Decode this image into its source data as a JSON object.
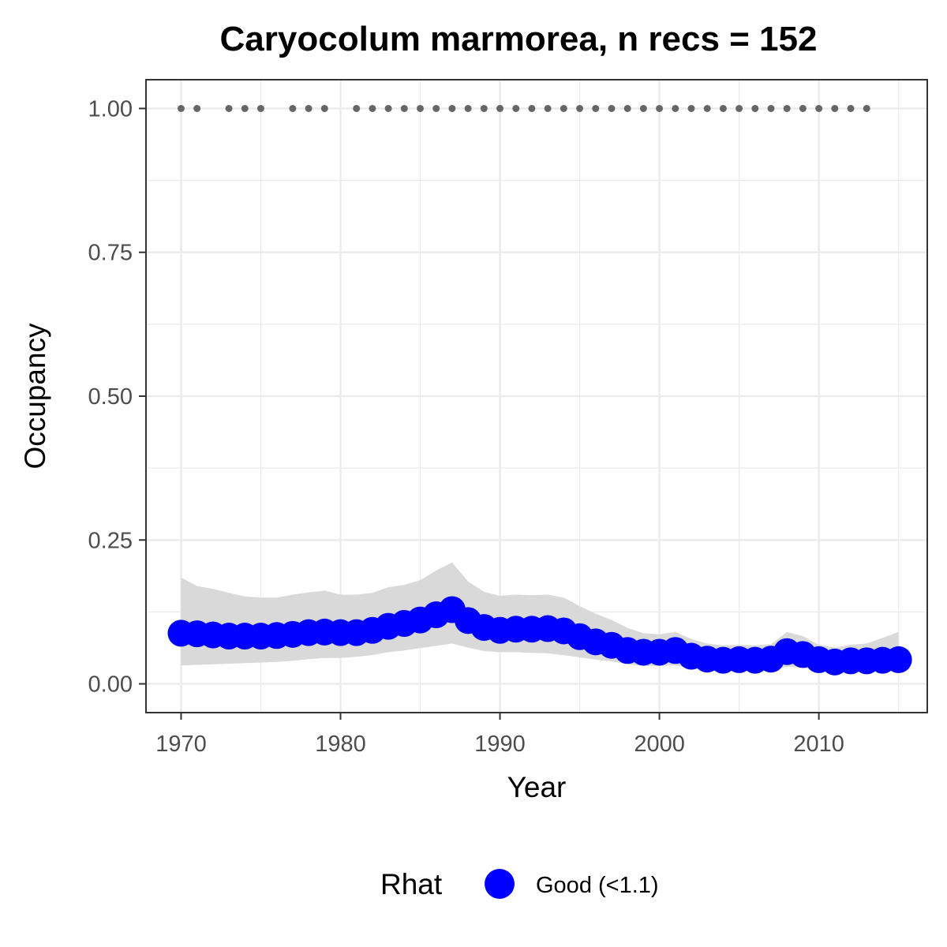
{
  "chart_data": {
    "type": "line",
    "title": "Caryocolum marmorea, n recs = 152",
    "xlabel": "Year",
    "ylabel": "Occupancy",
    "xlim": [
      1967.8,
      2016.8
    ],
    "ylim": [
      -0.05,
      1.05
    ],
    "x_ticks": [
      1970,
      1980,
      1990,
      2000,
      2010
    ],
    "x_tick_labels": [
      "1970",
      "1980",
      "1990",
      "2000",
      "2010"
    ],
    "y_ticks": [
      0,
      0.25,
      0.5,
      0.75,
      1
    ],
    "y_tick_labels": [
      "0.00",
      "0.25",
      "0.50",
      "0.75",
      "1.00"
    ],
    "grid": true,
    "legend": {
      "title": "Rhat",
      "position": "bottom",
      "entries": [
        {
          "label": "Good (<1.1)",
          "color": "#0000ff"
        }
      ]
    },
    "series": [
      {
        "name": "Occupancy",
        "color": "#0000ff",
        "x": [
          1970,
          1971,
          1972,
          1973,
          1974,
          1975,
          1976,
          1977,
          1978,
          1979,
          1980,
          1981,
          1982,
          1983,
          1984,
          1985,
          1986,
          1987,
          1988,
          1989,
          1990,
          1991,
          1992,
          1993,
          1994,
          1995,
          1996,
          1997,
          1998,
          1999,
          2000,
          2001,
          2002,
          2003,
          2004,
          2005,
          2006,
          2007,
          2008,
          2009,
          2010,
          2011,
          2012,
          2013,
          2014,
          2015
        ],
        "y": [
          0.088,
          0.087,
          0.085,
          0.083,
          0.083,
          0.083,
          0.084,
          0.086,
          0.089,
          0.09,
          0.089,
          0.089,
          0.093,
          0.1,
          0.105,
          0.111,
          0.12,
          0.129,
          0.11,
          0.098,
          0.093,
          0.095,
          0.095,
          0.096,
          0.092,
          0.082,
          0.073,
          0.067,
          0.058,
          0.055,
          0.055,
          0.058,
          0.048,
          0.043,
          0.041,
          0.042,
          0.041,
          0.043,
          0.056,
          0.051,
          0.042,
          0.038,
          0.04,
          0.04,
          0.041,
          0.042
        ],
        "lower": [
          0.032,
          0.033,
          0.034,
          0.035,
          0.036,
          0.037,
          0.038,
          0.04,
          0.043,
          0.045,
          0.045,
          0.047,
          0.05,
          0.055,
          0.058,
          0.062,
          0.066,
          0.07,
          0.063,
          0.057,
          0.055,
          0.055,
          0.054,
          0.053,
          0.05,
          0.046,
          0.042,
          0.039,
          0.034,
          0.031,
          0.031,
          0.032,
          0.027,
          0.024,
          0.023,
          0.023,
          0.023,
          0.024,
          0.03,
          0.028,
          0.023,
          0.021,
          0.022,
          0.022,
          0.023,
          0.023
        ],
        "upper": [
          0.185,
          0.17,
          0.165,
          0.158,
          0.152,
          0.15,
          0.15,
          0.155,
          0.159,
          0.162,
          0.155,
          0.155,
          0.158,
          0.168,
          0.172,
          0.18,
          0.197,
          0.211,
          0.178,
          0.16,
          0.153,
          0.155,
          0.154,
          0.155,
          0.15,
          0.135,
          0.122,
          0.111,
          0.097,
          0.088,
          0.086,
          0.09,
          0.078,
          0.07,
          0.067,
          0.068,
          0.067,
          0.069,
          0.09,
          0.083,
          0.068,
          0.063,
          0.068,
          0.07,
          0.08,
          0.09
        ]
      }
    ],
    "record_years": {
      "y": 1,
      "color": "#666666",
      "x": [
        1970,
        1971,
        1973,
        1974,
        1975,
        1977,
        1978,
        1979,
        1981,
        1982,
        1983,
        1984,
        1985,
        1986,
        1987,
        1988,
        1989,
        1990,
        1991,
        1992,
        1993,
        1994,
        1995,
        1996,
        1997,
        1998,
        1999,
        2000,
        2001,
        2002,
        2003,
        2004,
        2005,
        2006,
        2007,
        2008,
        2009,
        2010,
        2011,
        2012,
        2013
      ]
    },
    "ribbon_color": "#d9d9d9",
    "panel_border_color": "#333333",
    "grid_color": "#ebebeb"
  }
}
